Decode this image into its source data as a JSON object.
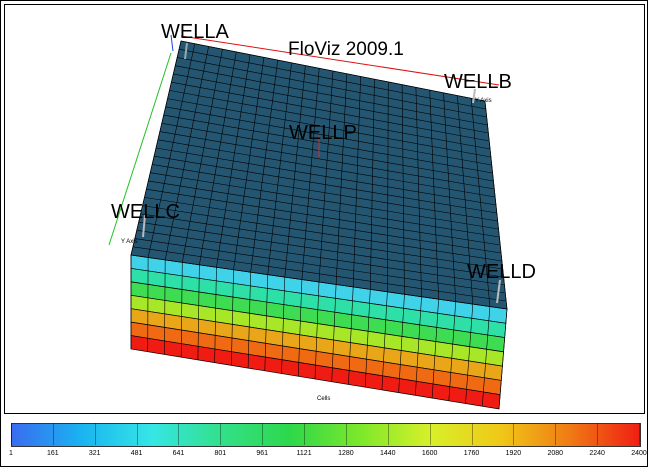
{
  "title": "FloViz 2009.1",
  "wells": [
    {
      "name": "WELLA"
    },
    {
      "name": "WELLB"
    },
    {
      "name": "WELLP"
    },
    {
      "name": "WELLC"
    },
    {
      "name": "WELLD"
    }
  ],
  "axis_labels": {
    "y_axis_left": "Y Axis",
    "y_axis_right": "Y Axis",
    "cells": "Cells"
  },
  "colorbar": {
    "ticks": [
      "1",
      "161",
      "321",
      "481",
      "641",
      "801",
      "961",
      "1121",
      "1280",
      "1440",
      "1600",
      "1760",
      "1920",
      "2080",
      "2240",
      "2400"
    ],
    "colors": [
      "#3a6cf0",
      "#1ab4f0",
      "#35e6e6",
      "#33e08a",
      "#2ed84a",
      "#7ee82a",
      "#d8f02a",
      "#f0c818",
      "#f07a14",
      "#f01e14"
    ]
  },
  "layers": {
    "top_color": "#245672",
    "side_colors": [
      "#3fd2e8",
      "#2ee0a8",
      "#3edc52",
      "#a8e628",
      "#e8a618",
      "#f06a14",
      "#f01c14"
    ]
  }
}
